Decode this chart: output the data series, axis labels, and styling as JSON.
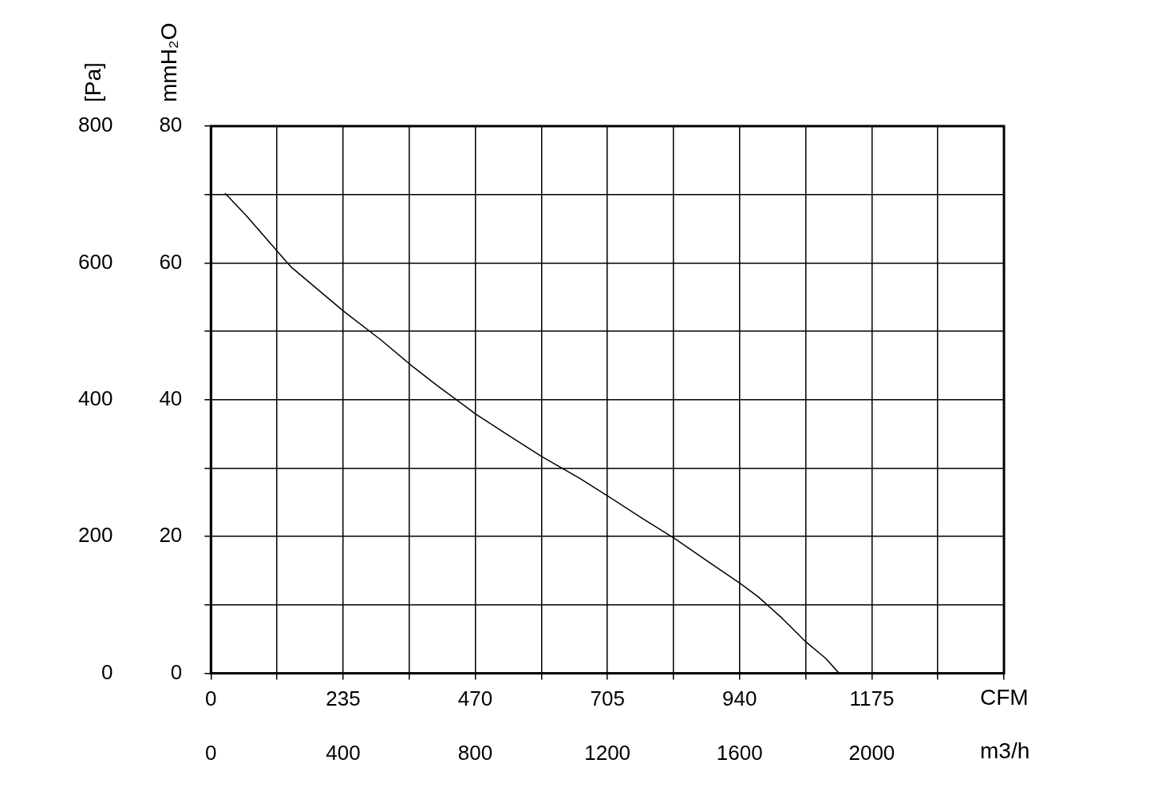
{
  "chart_data": {
    "type": "line",
    "xlabel": "CFM",
    "x2label": "m3/h",
    "ylabel": "[Pa]",
    "y2label": "mmH₂O",
    "xlim": [
      0,
      1410
    ],
    "xticks": [
      0,
      {
        "value": 117.5,
        "label": null
      },
      235,
      {
        "value": 352.5,
        "label": null
      },
      470,
      {
        "value": 587.5,
        "label": null
      },
      705,
      {
        "value": 822.5,
        "label": null
      },
      940,
      {
        "value": 1057.5,
        "label": null
      },
      1175,
      {
        "value": 1292.5,
        "label": null
      },
      {
        "value": 1410,
        "label": null
      }
    ],
    "x2lim": [
      0,
      2400
    ],
    "x2ticks": [
      0,
      400,
      800,
      1200,
      1600,
      2000
    ],
    "ylim": [
      0,
      800
    ],
    "yticks": [
      0,
      {
        "value": 100,
        "label": null
      },
      200,
      {
        "value": 300,
        "label": null
      },
      400,
      {
        "value": 500,
        "label": null
      },
      600,
      {
        "value": 700,
        "label": null
      },
      800
    ],
    "y2lim": [
      0,
      80
    ],
    "y2ticks": [
      0,
      20,
      40,
      60,
      80
    ],
    "grid": true,
    "legend": false,
    "marker": "none",
    "line_style": "solid",
    "series": [
      {
        "color": "#000000",
        "x": [
          25,
          63,
          134,
          144,
          235,
          303,
          355,
          402,
          471,
          529,
          588,
          656,
          706,
          768,
          825,
          881,
          942,
          973,
          1015,
          1058,
          1093,
          1117
        ],
        "values": [
          702,
          669,
          602,
          593,
          530,
          487,
          451,
          421,
          379,
          348,
          317,
          285,
          259,
          226,
          197,
          165,
          131,
          112,
          81,
          46,
          22,
          0
        ]
      }
    ]
  }
}
